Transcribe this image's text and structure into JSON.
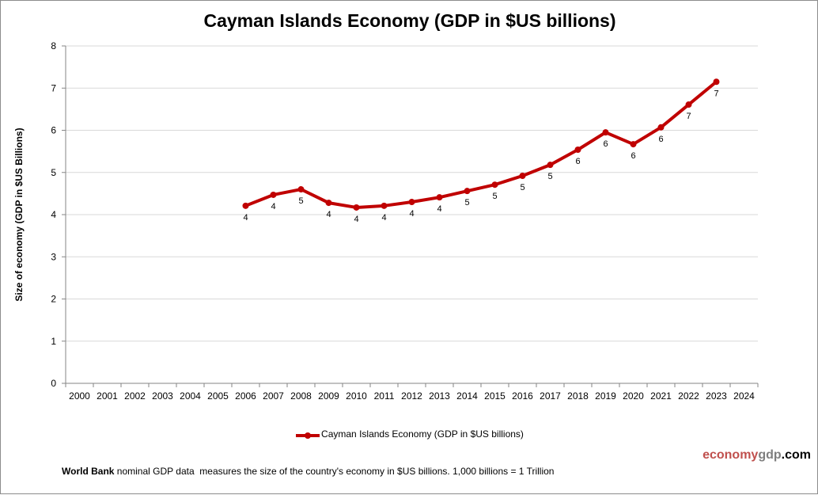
{
  "chart_data": {
    "type": "line",
    "title": "Cayman Islands Economy (GDP in $US billions)",
    "xlabel": "",
    "ylabel": "Size of economy (GDP in $US Billions)",
    "ylim": [
      0,
      8
    ],
    "yticks": [
      "0",
      "1",
      "2",
      "3",
      "4",
      "5",
      "6",
      "7",
      "8"
    ],
    "categories": [
      "2000",
      "2001",
      "2002",
      "2003",
      "2004",
      "2005",
      "2006",
      "2007",
      "2008",
      "2009",
      "2010",
      "2011",
      "2012",
      "2013",
      "2014",
      "2015",
      "2016",
      "2017",
      "2018",
      "2019",
      "2020",
      "2021",
      "2022",
      "2023",
      "2024"
    ],
    "grid": true,
    "legend_position": "bottom",
    "series": [
      {
        "name": "Cayman Islands Economy (GDP in $US billions)",
        "color": "#c00000",
        "x": [
          "2006",
          "2007",
          "2008",
          "2009",
          "2010",
          "2011",
          "2012",
          "2013",
          "2014",
          "2015",
          "2016",
          "2017",
          "2018",
          "2019",
          "2020",
          "2021",
          "2022",
          "2023"
        ],
        "values": [
          4.21,
          4.47,
          4.6,
          4.28,
          4.17,
          4.21,
          4.3,
          4.41,
          4.56,
          4.71,
          4.92,
          5.18,
          5.54,
          5.95,
          5.67,
          6.07,
          6.61,
          7.15
        ],
        "data_labels": [
          "4",
          "4",
          "5",
          "4",
          "4",
          "4",
          "4",
          "4",
          "5",
          "5",
          "5",
          "5",
          "6",
          "6",
          "6",
          "6",
          "7",
          "7"
        ]
      }
    ]
  },
  "brand": {
    "part1": "economy",
    "part2": "gdp",
    "part3": ".com",
    "color1": "#c0504d",
    "color2": "#7f7f7f"
  },
  "footer": {
    "bold": "World Bank",
    "text": " nominal GDP data  measures the size of the country's economy in $US billions. 1,000 billions = 1 Trillion"
  }
}
